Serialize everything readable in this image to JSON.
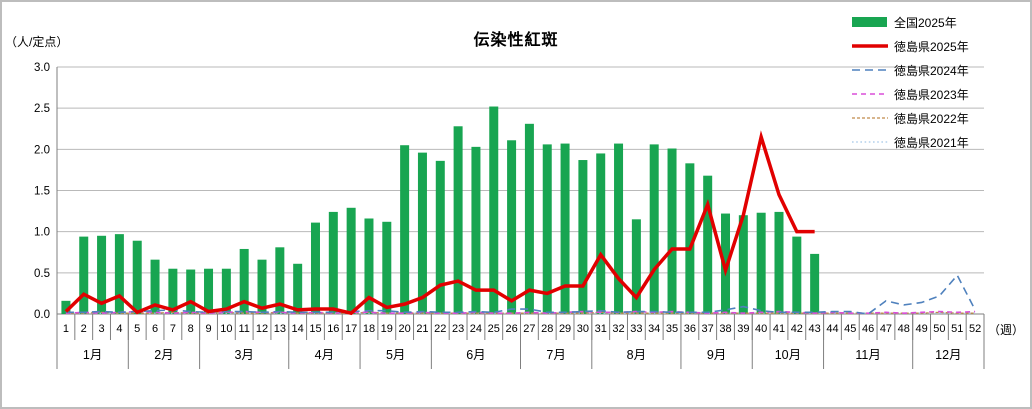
{
  "chart_data": {
    "type": "combo-bar-line",
    "title": "伝染性紅斑",
    "legend_position": "top-right",
    "grid": true,
    "y_axis": {
      "unit_label": "（人/定点）",
      "min": 0,
      "max": 3.0,
      "step": 0.5,
      "tick_labels": [
        "0.0",
        "0.5",
        "1.0",
        "1.5",
        "2.0",
        "2.5",
        "3.0"
      ]
    },
    "x_axis": {
      "unit_label": "（週）",
      "weeks": [
        "1",
        "2",
        "3",
        "4",
        "5",
        "6",
        "7",
        "8",
        "9",
        "10",
        "11",
        "12",
        "13",
        "14",
        "15",
        "16",
        "17",
        "18",
        "19",
        "20",
        "21",
        "22",
        "23",
        "24",
        "25",
        "26",
        "27",
        "28",
        "29",
        "30",
        "31",
        "32",
        "33",
        "34",
        "35",
        "36",
        "37",
        "38",
        "39",
        "40",
        "41",
        "42",
        "43",
        "44",
        "45",
        "46",
        "47",
        "48",
        "49",
        "50",
        "51",
        "52"
      ],
      "months": [
        {
          "label": "1月",
          "span": 4
        },
        {
          "label": "2月",
          "span": 4
        },
        {
          "label": "3月",
          "span": 5
        },
        {
          "label": "4月",
          "span": 4
        },
        {
          "label": "5月",
          "span": 4
        },
        {
          "label": "6月",
          "span": 5
        },
        {
          "label": "7月",
          "span": 4
        },
        {
          "label": "8月",
          "span": 5
        },
        {
          "label": "9月",
          "span": 4
        },
        {
          "label": "10月",
          "span": 4
        },
        {
          "label": "11月",
          "span": 5
        },
        {
          "label": "12月",
          "span": 4
        }
      ]
    },
    "series": [
      {
        "name": "全国2025年",
        "type": "bar",
        "color": "#18a551",
        "values": [
          0.16,
          0.94,
          0.95,
          0.97,
          0.89,
          0.66,
          0.55,
          0.54,
          0.55,
          0.55,
          0.79,
          0.66,
          0.81,
          0.61,
          1.11,
          1.24,
          1.29,
          1.16,
          1.12,
          2.05,
          1.96,
          1.86,
          2.28,
          2.03,
          2.52,
          2.11,
          2.31,
          2.06,
          2.07,
          1.87,
          1.95,
          2.07,
          1.15,
          2.06,
          2.01,
          1.83,
          1.68,
          1.22,
          1.2,
          1.23,
          1.24,
          0.94,
          0.73
        ]
      },
      {
        "name": "徳島県2025年",
        "type": "line",
        "style": "solid",
        "width": 3.5,
        "color": "#e10000",
        "values": [
          0.03,
          0.24,
          0.13,
          0.22,
          0.02,
          0.11,
          0.05,
          0.15,
          0.03,
          0.06,
          0.15,
          0.07,
          0.12,
          0.05,
          0.06,
          0.06,
          0.01,
          0.2,
          0.08,
          0.12,
          0.2,
          0.35,
          0.4,
          0.29,
          0.29,
          0.16,
          0.29,
          0.25,
          0.34,
          0.34,
          0.72,
          0.43,
          0.2,
          0.54,
          0.79,
          0.79,
          1.33,
          0.53,
          1.2,
          2.15,
          1.45,
          1.0,
          1.0
        ]
      },
      {
        "name": "徳島県2024年",
        "type": "line",
        "style": "dash",
        "width": 1.6,
        "color": "#4f81bd",
        "values": [
          0.02,
          0.02,
          0.03,
          0.02,
          0.03,
          0.04,
          0.05,
          0.03,
          0.02,
          0.03,
          0.03,
          0.02,
          0.03,
          0.02,
          0.02,
          0.02,
          0.03,
          0.04,
          0.04,
          0.02,
          0.03,
          0.02,
          0.02,
          0.03,
          0.02,
          0.06,
          0.06,
          0.02,
          0.02,
          0.03,
          0.04,
          0.02,
          0.03,
          0.03,
          0.02,
          0.02,
          0.02,
          0.05,
          0.09,
          0.04,
          0.02,
          0.02,
          0.02,
          0.03,
          0.03,
          0.0,
          0.16,
          0.11,
          0.14,
          0.22,
          0.47,
          0.05
        ]
      },
      {
        "name": "徳島県2023年",
        "type": "line",
        "style": "dash-short",
        "width": 1.6,
        "color": "#da4fd9",
        "values": [
          0.01,
          0.02,
          0.01,
          0.02,
          0.03,
          0.02,
          0.01,
          0.02,
          0.01,
          0.02,
          0.03,
          0.02,
          0.02,
          0.01,
          0.02,
          0.01,
          0.02,
          0.02,
          0.01,
          0.01,
          0.02,
          0.01,
          0.01,
          0.02,
          0.01,
          0.01,
          0.02,
          0.01,
          0.02,
          0.03,
          0.02,
          0.02,
          0.03,
          0.02,
          0.03,
          0.02,
          0.01,
          0.02,
          0.01,
          0.02,
          0.03,
          0.02,
          0.01,
          0.02,
          0.01,
          0.01,
          0.02,
          0.01,
          0.02,
          0.03,
          0.02,
          0.03
        ]
      },
      {
        "name": "徳島県2022年",
        "type": "line",
        "style": "dash-dense",
        "width": 1.3,
        "color": "#c08b4a",
        "values": [
          0.01,
          0.01,
          0.02,
          0.01,
          0.01,
          0.01,
          0.02,
          0.01,
          0.01,
          0.02,
          0.01,
          0.01,
          0.02,
          0.01,
          0.01,
          0.01,
          0.01,
          0.02,
          0.01,
          0.01,
          0.01,
          0.01,
          0.01,
          0.01,
          0.01,
          0.01,
          0.01,
          0.01,
          0.01,
          0.01,
          0.02,
          0.01,
          0.01,
          0.01,
          0.01,
          0.01,
          0.01,
          0.01,
          0.01,
          0.01,
          0.01,
          0.01,
          0.01,
          0.01,
          0.01,
          0.01,
          0.01,
          0.01,
          0.01,
          0.02,
          0.01,
          0.01
        ]
      },
      {
        "name": "徳島県2021年",
        "type": "line",
        "style": "dot",
        "width": 1.3,
        "color": "#a3c6e8",
        "values": [
          0.01,
          0.01,
          0.01,
          0.01,
          0.02,
          0.01,
          0.01,
          0.01,
          0.01,
          0.01,
          0.01,
          0.02,
          0.01,
          0.01,
          0.01,
          0.01,
          0.01,
          0.01,
          0.01,
          0.01,
          0.01,
          0.01,
          0.01,
          0.01,
          0.01,
          0.01,
          0.01,
          0.01,
          0.01,
          0.01,
          0.01,
          0.01,
          0.01,
          0.01,
          0.01,
          0.01,
          0.01,
          0.01,
          0.01,
          0.01,
          0.01,
          0.01,
          0.01,
          0.01,
          0.01,
          0.01,
          0.01,
          0.01,
          0.01,
          0.01,
          0.01,
          0.01
        ]
      }
    ],
    "colors": {
      "gridline": "#b9b9b9",
      "axis": "#7f7f7f",
      "text": "#000000",
      "frame_border": "#bdbdbd"
    }
  }
}
